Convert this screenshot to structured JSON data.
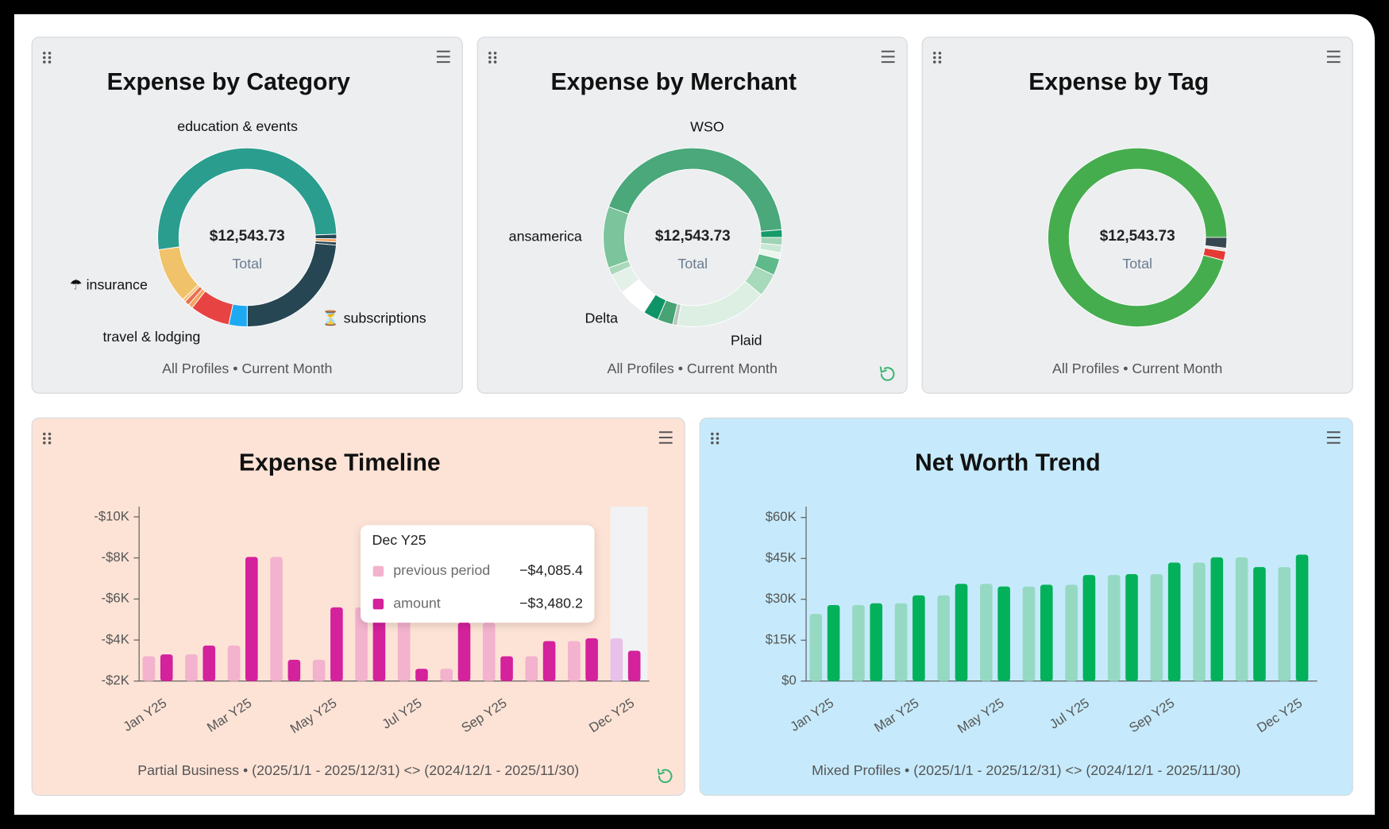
{
  "chart_data": [
    {
      "type": "donut",
      "title": "Expense by Category",
      "subtitle": "All Profiles • Current Month",
      "center_label": "$12,543.73",
      "center_caption": "Total",
      "background": "#eceef0",
      "categories": [
        "education & events",
        null,
        null,
        null,
        "⏳ subscriptions",
        null,
        "travel & lodging",
        null,
        null,
        null,
        "☂ insurance"
      ],
      "values": [
        6481,
        105,
        70,
        70,
        2962,
        418,
        906,
        105,
        105,
        70,
        1254
      ],
      "colors": [
        "#2a9d8f",
        "#264653",
        "#f4a261",
        "#264653",
        "#264653",
        "#1eaaf1",
        "#e84343",
        "#f4a261",
        "#e76f51",
        "#f6c177",
        "#f0c36a"
      ]
    },
    {
      "type": "donut",
      "title": "Expense by Merchant",
      "subtitle": "All Profiles • Current Month",
      "center_label": "$12,543.73",
      "center_caption": "Total",
      "background": "#eceef0",
      "categories": [
        "WSO",
        null,
        null,
        null,
        null,
        null,
        null,
        "Plaid",
        null,
        null,
        null,
        "Delta",
        null,
        null,
        "ansamerica"
      ],
      "values": [
        5401,
        174,
        174,
        174,
        139,
        383,
        523,
        2091,
        105,
        348,
        348,
        662,
        453,
        174,
        1394
      ],
      "colors": [
        "#4aa87b",
        "#159a6a",
        "#9fd3b5",
        "#c9e7d5",
        "#eaf5ee",
        "#5fb98a",
        "#a7d9bb",
        "#ddefe3",
        "#b9c7bf",
        "#48a374",
        "#0f9467",
        "#ffffff",
        "#e3f1e8",
        "#a9d8bb",
        "#7cc49b"
      ]
    },
    {
      "type": "donut",
      "title": "Expense by Tag",
      "subtitle": "All Profiles • Current Month",
      "center_label": "$12,543.73",
      "center_caption": "Total",
      "background": "#eceef0",
      "categories": [
        null,
        null,
        null,
        null
      ],
      "values": [
        12021,
        244,
        70,
        209
      ],
      "colors": [
        "#46ad4f",
        "#37474f",
        "#e6e6e6",
        "#e53935"
      ]
    },
    {
      "type": "bar",
      "title": "Expense Timeline",
      "subtitle": "Partial Business • (2025/1/1 - 2025/12/31) <> (2024/12/1 - 2025/11/30)",
      "background": "#fde3d6",
      "categories": [
        "Jan Y25",
        null,
        "Mar Y25",
        null,
        "May Y25",
        null,
        "Jul Y25",
        null,
        "Sep Y25",
        null,
        null,
        "Dec Y25"
      ],
      "ylim": [
        -2000,
        -10500
      ],
      "yticks": [
        {
          "value": -2000,
          "label": "-$2K"
        },
        {
          "value": -4000,
          "label": "-$4K"
        },
        {
          "value": -6000,
          "label": "-$6K"
        },
        {
          "value": -8000,
          "label": "-$8K"
        },
        {
          "value": -10000,
          "label": "-$10K"
        }
      ],
      "series": [
        {
          "name": "previous period",
          "color": "#f3b2cd",
          "values": [
            -3210,
            -3300,
            -3730,
            -8050,
            -3040,
            -5590,
            -4980,
            -2600,
            -4850,
            -3210,
            -3950,
            -4085.4
          ],
          "value_labels": [
            null,
            null,
            null,
            null,
            null,
            null,
            null,
            null,
            null,
            null,
            null,
            "−$4,085.4"
          ]
        },
        {
          "name": "amount",
          "color": "#d4219c",
          "values": [
            -3300,
            -3730,
            -8050,
            -3040,
            -5590,
            -4980,
            -2600,
            -4850,
            -3210,
            -3950,
            -4085.4,
            -3480.2
          ],
          "value_labels": [
            null,
            null,
            null,
            null,
            null,
            null,
            null,
            null,
            null,
            null,
            null,
            "−$3,480.2"
          ]
        }
      ]
    },
    {
      "type": "bar",
      "title": "Net Worth Trend",
      "subtitle": "Mixed Profiles • (2025/1/1 - 2025/12/31) <> (2024/12/1 - 2025/11/30)",
      "background": "#c6eafb",
      "categories": [
        "Jan Y25",
        null,
        "Mar Y25",
        null,
        "May Y25",
        null,
        "Jul Y25",
        null,
        "Sep Y25",
        null,
        null,
        "Dec Y25"
      ],
      "ylim": [
        0,
        64000
      ],
      "yticks": [
        {
          "value": 0,
          "label": "$0"
        },
        {
          "value": 15000,
          "label": "$15K"
        },
        {
          "value": 30000,
          "label": "$30K"
        },
        {
          "value": 45000,
          "label": "$45K"
        },
        {
          "value": 60000,
          "label": "$60K"
        }
      ],
      "series": [
        {
          "color": "#96d9c3",
          "values": [
            24650,
            27890,
            28540,
            31460,
            35670,
            34700,
            35350,
            38920,
            39240,
            43460,
            45400,
            41840
          ]
        },
        {
          "color": "#03b15a",
          "values": [
            27890,
            28540,
            31460,
            35670,
            34700,
            35350,
            38920,
            39240,
            43460,
            45400,
            41840,
            46380
          ]
        }
      ]
    }
  ]
}
